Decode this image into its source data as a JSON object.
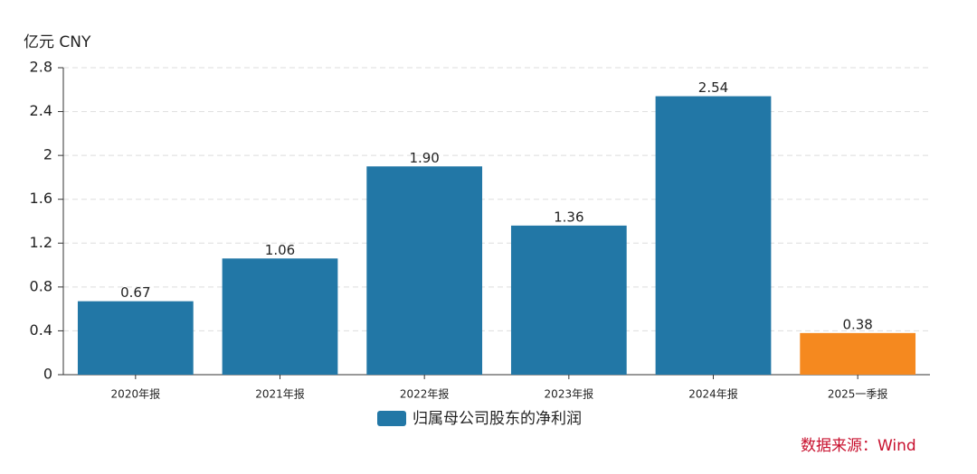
{
  "chart_data": {
    "type": "bar",
    "y_label": "亿元  CNY",
    "categories": [
      "2020年报",
      "2021年报",
      "2022年报",
      "2023年报",
      "2024年报",
      "2025一季报"
    ],
    "series": [
      {
        "name": "归属母公司股东的净利润",
        "color": "#2277a6",
        "values": [
          0.67,
          1.06,
          1.9,
          1.36,
          2.54,
          0.38
        ],
        "value_labels": [
          "0.67",
          "1.06",
          "1.90",
          "1.36",
          "2.54",
          "0.38"
        ],
        "colors": [
          "#2277a6",
          "#2277a6",
          "#2277a6",
          "#2277a6",
          "#2277a6",
          "#f5891f"
        ]
      }
    ],
    "ylim": [
      0,
      2.8
    ],
    "yticks": [
      0,
      0.4,
      0.8,
      1.2,
      1.6,
      2,
      2.4,
      2.8
    ],
    "grid": true,
    "legend": "bottom",
    "source": "数据来源：Wind"
  }
}
